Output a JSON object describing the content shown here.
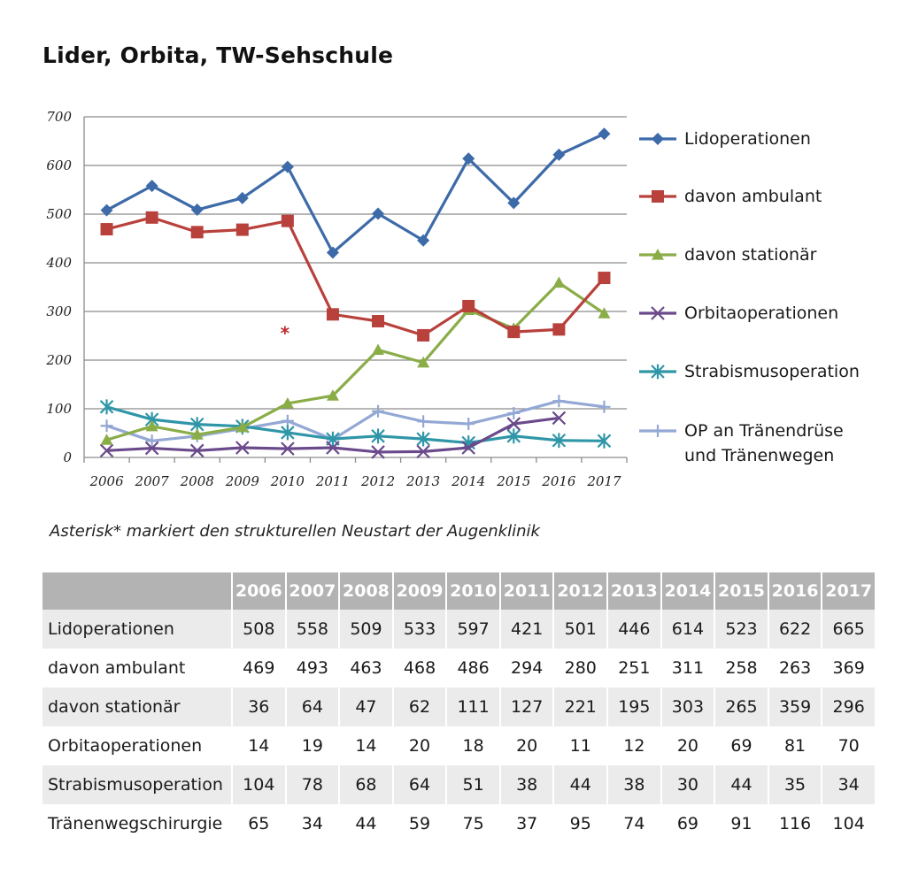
{
  "title": "Lider, Orbita, TW-Sehschule",
  "note": "Asterisk* markiert den strukturellen Neustart der Augenklinik",
  "chart_data": {
    "type": "line",
    "title": "Lider, Orbita, TW-Sehschule",
    "x": [
      "2006",
      "2007",
      "2008",
      "2009",
      "2010",
      "2011",
      "2012",
      "2013",
      "2014",
      "2015",
      "2016",
      "2017"
    ],
    "ylim": [
      0,
      700
    ],
    "yticks": [
      0,
      100,
      200,
      300,
      400,
      500,
      600,
      700
    ],
    "grid": true,
    "legend_position": "right",
    "annotation": {
      "text": "*",
      "x": "2010",
      "y": 232,
      "color": "#c0262b"
    },
    "series": [
      {
        "name": "Lidoperationen",
        "color": "#3d6aa8",
        "marker": "diamond",
        "values": [
          508,
          558,
          509,
          533,
          597,
          421,
          501,
          446,
          614,
          523,
          622,
          665
        ]
      },
      {
        "name": "davon ambulant",
        "color": "#b8413c",
        "marker": "square",
        "values": [
          469,
          493,
          463,
          468,
          486,
          294,
          280,
          251,
          311,
          258,
          263,
          369
        ]
      },
      {
        "name": "davon stationär",
        "color": "#8aad48",
        "marker": "triangle",
        "values": [
          36,
          64,
          47,
          62,
          111,
          127,
          221,
          195,
          303,
          265,
          359,
          296
        ]
      },
      {
        "name": "Orbitaoperationen",
        "color": "#6b4a8c",
        "marker": "x",
        "values": [
          14,
          19,
          14,
          20,
          18,
          20,
          11,
          12,
          20,
          69,
          81,
          null
        ]
      },
      {
        "name": "Strabismusoperation",
        "color": "#2f96a8",
        "marker": "star",
        "values": [
          104,
          78,
          68,
          64,
          51,
          38,
          44,
          38,
          30,
          44,
          35,
          34
        ]
      },
      {
        "name": "OP an Tränendrüse und Tränenwegen",
        "legend_lines": [
          "OP an Tränendrüse",
          "und Tränenwegen"
        ],
        "color": "#93a8d4",
        "marker": "plus",
        "values": [
          65,
          34,
          44,
          59,
          75,
          37,
          95,
          74,
          69,
          91,
          116,
          104
        ]
      }
    ]
  },
  "table": {
    "headers": [
      "2006",
      "2007",
      "2008",
      "2009",
      "2010",
      "2011",
      "2012",
      "2013",
      "2014",
      "2015",
      "2016",
      "2017"
    ],
    "rows": [
      {
        "label": "Lidoperationen",
        "values": [
          "508",
          "558",
          "509",
          "533",
          "597",
          "421",
          "501",
          "446",
          "614",
          "523",
          "622",
          "665"
        ]
      },
      {
        "label": "davon ambulant",
        "values": [
          "469",
          "493",
          "463",
          "468",
          "486",
          "294",
          "280",
          "251",
          "311",
          "258",
          "263",
          "369"
        ]
      },
      {
        "label": "davon stationär",
        "values": [
          "36",
          "64",
          "47",
          "62",
          "111",
          "127",
          "221",
          "195",
          "303",
          "265",
          "359",
          "296"
        ]
      },
      {
        "label": "Orbitaoperationen",
        "values": [
          "14",
          "19",
          "14",
          "20",
          "18",
          "20",
          "11",
          "12",
          "20",
          "69",
          "81",
          "70"
        ]
      },
      {
        "label": "Strabismusoperation",
        "values": [
          "104",
          "78",
          "68",
          "64",
          "51",
          "38",
          "44",
          "38",
          "30",
          "44",
          "35",
          "34"
        ]
      },
      {
        "label": "Tränenwegschirurgie",
        "values": [
          "65",
          "34",
          "44",
          "59",
          "75",
          "37",
          "95",
          "74",
          "69",
          "91",
          "116",
          "104"
        ]
      }
    ]
  }
}
